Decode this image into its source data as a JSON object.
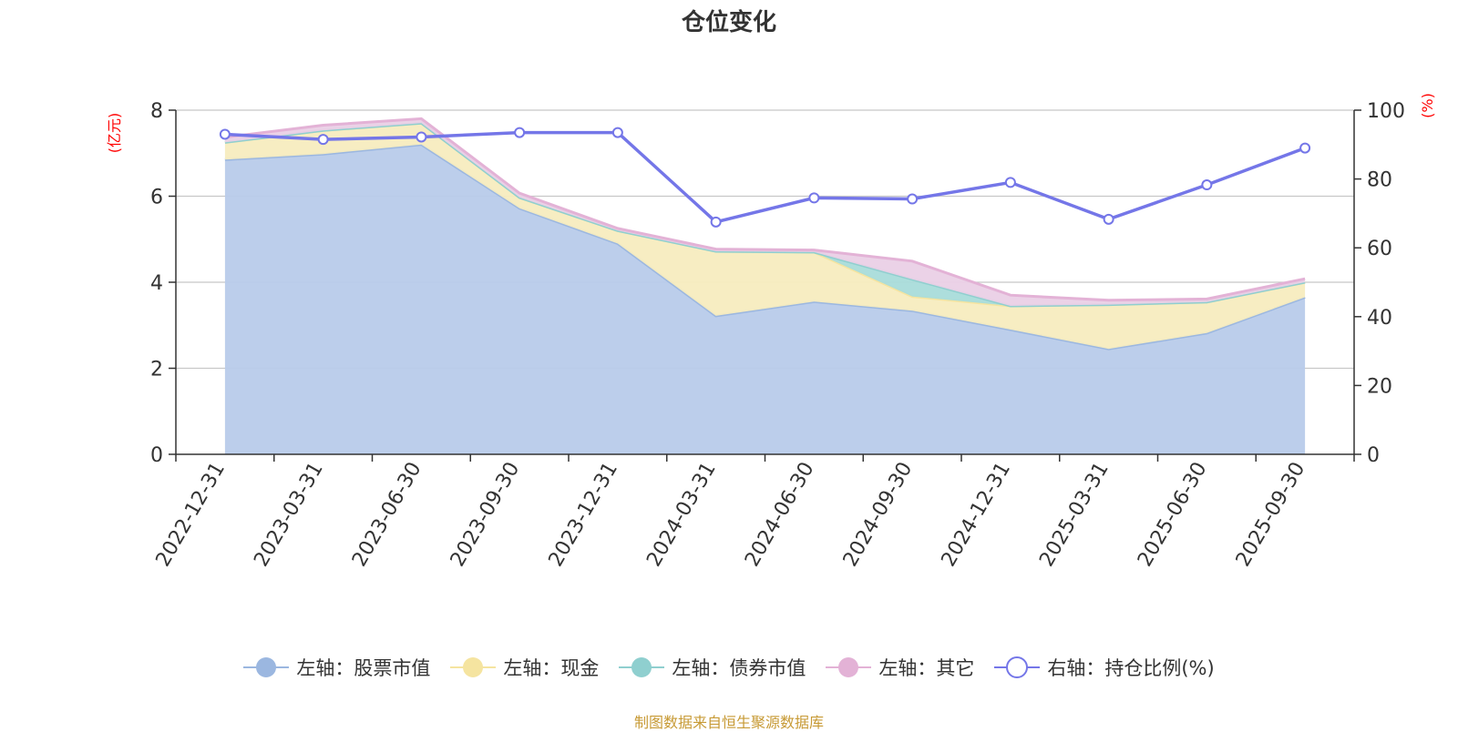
{
  "chart_data": {
    "type": "area",
    "title": "仓位变化",
    "left_axis_unit": "(亿元)",
    "right_axis_unit": "(%)",
    "x": [
      "2022-12-31",
      "2023-03-31",
      "2023-06-30",
      "2023-09-30",
      "2023-12-31",
      "2024-03-31",
      "2024-06-30",
      "2024-09-30",
      "2024-12-31",
      "2025-03-31",
      "2025-06-30",
      "2025-09-30"
    ],
    "left_ylim": [
      0,
      8
    ],
    "left_yticks": [
      "0",
      "2",
      "4",
      "6",
      "8"
    ],
    "right_ylim": [
      0,
      100
    ],
    "right_yticks": [
      "0",
      "20",
      "40",
      "60",
      "80",
      "100"
    ],
    "stack_series": [
      {
        "name": "左轴：股票市值",
        "color": "#9bb7e0",
        "fill": "#b8cbea",
        "values": [
          6.85,
          6.98,
          7.2,
          5.72,
          4.9,
          3.22,
          3.55,
          3.34,
          2.9,
          2.45,
          2.82,
          3.65
        ]
      },
      {
        "name": "左轴：现金",
        "color": "#f5e4a0",
        "fill": "#f7ecbf",
        "values": [
          0.4,
          0.55,
          0.5,
          0.25,
          0.3,
          1.5,
          1.15,
          0.33,
          0.55,
          1.03,
          0.72,
          0.35
        ]
      },
      {
        "name": "左轴：债券市值",
        "color": "#8fcfcf",
        "fill": "#a9dcda",
        "values": [
          0,
          0,
          0,
          0,
          0,
          0,
          0,
          0.4,
          0,
          0,
          0,
          0
        ]
      },
      {
        "name": "左轴：其它",
        "color": "#e3b2d6",
        "fill": "#ead0e6",
        "values": [
          0.12,
          0.12,
          0.1,
          0.1,
          0.05,
          0.05,
          0.05,
          0.42,
          0.25,
          0.1,
          0.07,
          0.08
        ]
      }
    ],
    "line_series": {
      "name": "右轴：持仓比例(%)",
      "color": "#7476e8",
      "values": [
        93.0,
        91.5,
        92.2,
        93.5,
        93.5,
        67.5,
        74.5,
        74.2,
        79.0,
        68.3,
        78.3,
        89.0
      ]
    },
    "legend_position": "bottom-center",
    "grid": true
  },
  "source_note": "制图数据来自恒生聚源数据库"
}
